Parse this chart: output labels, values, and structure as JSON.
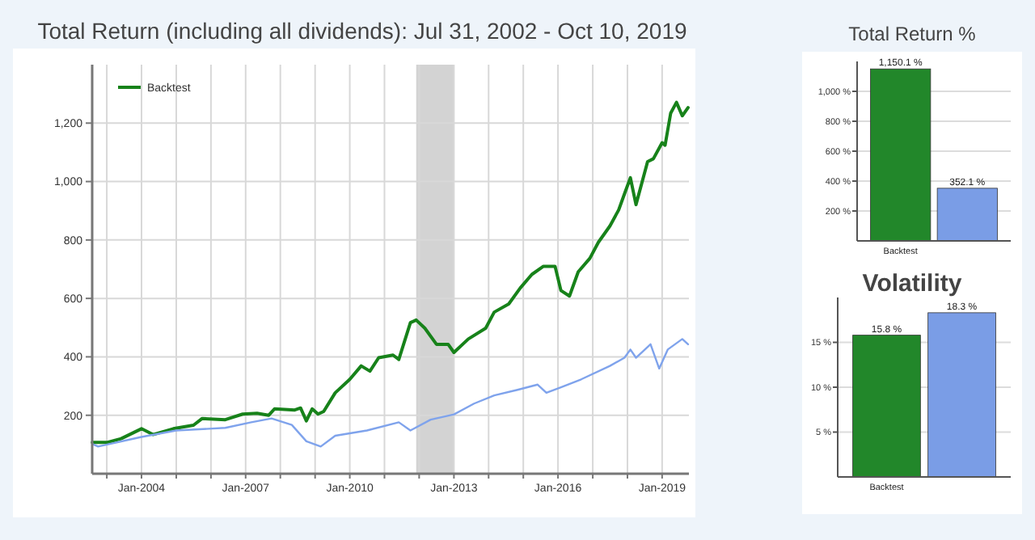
{
  "chart_data": [
    {
      "type": "line",
      "title": "Total Return (including all dividends): Jul 31, 2002 - Oct 10, 2019",
      "xlim": [
        "2002-07-31",
        "2019-10-10"
      ],
      "xticks": [
        {
          "value": "2003-01",
          "label": null
        },
        {
          "value": "2004-01",
          "label": "Jan-2004"
        },
        {
          "value": "2005-01",
          "label": null
        },
        {
          "value": "2006-01",
          "label": null
        },
        {
          "value": "2007-01",
          "label": "Jan-2007"
        },
        {
          "value": "2008-01",
          "label": null
        },
        {
          "value": "2009-01",
          "label": null
        },
        {
          "value": "2010-01",
          "label": "Jan-2010"
        },
        {
          "value": "2011-01",
          "label": null
        },
        {
          "value": "2012-01",
          "label": null
        },
        {
          "value": "2013-01",
          "label": "Jan-2013"
        },
        {
          "value": "2014-01",
          "label": null
        },
        {
          "value": "2015-01",
          "label": null
        },
        {
          "value": "2016-01",
          "label": "Jan-2016"
        },
        {
          "value": "2017-01",
          "label": null
        },
        {
          "value": "2018-01",
          "label": null
        },
        {
          "value": "2019-01",
          "label": "Jan-2019"
        }
      ],
      "ylim": [
        0,
        1400
      ],
      "yticks": [
        200,
        400,
        600,
        800,
        {
          "value": 1000,
          "label": "1,000"
        },
        {
          "value": 1200,
          "label": "1,200"
        }
      ],
      "grid": true,
      "legend": "top left",
      "bands": [
        {
          "axis": "x",
          "from": "2011-12",
          "to": "2013-01",
          "color": "#d3d3d3"
        }
      ],
      "series": [
        {
          "name": "Backtest",
          "color": "#17821a",
          "x": [
            "2002-08",
            "2003-01",
            "2003-06",
            "2004-01",
            "2004-05",
            "2004-12",
            "2005-07",
            "2005-10",
            "2006-06",
            "2006-12",
            "2007-05",
            "2007-09",
            "2007-11",
            "2008-06",
            "2008-08",
            "2008-10",
            "2008-12",
            "2009-02",
            "2009-04",
            "2009-08",
            "2010-01",
            "2010-05",
            "2010-08",
            "2010-11",
            "2011-04",
            "2011-06",
            "2011-10",
            "2011-12",
            "2012-03",
            "2012-07",
            "2012-11",
            "2013-01",
            "2013-06",
            "2013-12",
            "2014-03",
            "2014-08",
            "2014-12",
            "2015-04",
            "2015-08",
            "2015-12",
            "2016-02",
            "2016-05",
            "2016-08",
            "2016-12",
            "2017-03",
            "2017-07",
            "2017-10",
            "2017-12",
            "2018-02",
            "2018-04",
            "2018-08",
            "2018-10",
            "2019-01",
            "2019-02",
            "2019-04",
            "2019-06",
            "2019-08",
            "2019-10"
          ],
          "values": [
            107,
            107,
            120,
            154,
            134,
            154,
            166,
            189,
            185,
            204,
            207,
            200,
            222,
            218,
            225,
            181,
            222,
            204,
            213,
            277,
            323,
            369,
            351,
            397,
            406,
            391,
            517,
            526,
            498,
            443,
            443,
            415,
            461,
            498,
            553,
            581,
            636,
            682,
            710,
            710,
            627,
            608,
            691,
            737,
            792,
            848,
            903,
            958,
            1013,
            921,
            1068,
            1078,
            1133,
            1124,
            1234,
            1271,
            1225,
            1253
          ]
        },
        {
          "color": "#7fa3ec",
          "x": [
            "2002-08",
            "2002-10",
            "2004-01",
            "2005-01",
            "2006-06",
            "2007-03",
            "2007-10",
            "2008-05",
            "2008-10",
            "2009-03",
            "2009-08",
            "2010-07",
            "2011-06",
            "2011-10",
            "2012-05",
            "2013-01",
            "2013-08",
            "2014-03",
            "2014-11",
            "2015-06",
            "2015-09",
            "2016-02",
            "2016-09",
            "2017-07",
            "2017-12",
            "2018-02",
            "2018-04",
            "2018-09",
            "2018-12",
            "2019-03",
            "2019-08",
            "2019-10"
          ],
          "values": [
            102,
            93,
            126,
            148,
            157,
            176,
            189,
            167,
            111,
            93,
            130,
            148,
            176,
            148,
            185,
            203,
            240,
            268,
            287,
            305,
            277,
            296,
            323,
            369,
            397,
            425,
            397,
            443,
            360,
            425,
            461,
            443
          ]
        }
      ]
    },
    {
      "type": "bar",
      "title": "Total Return %",
      "categories": [
        "Backtest",
        null
      ],
      "values": [
        1150.1,
        352.1
      ],
      "colors": [
        "#22872a",
        "#7a9de6"
      ],
      "ylim": [
        0,
        1200
      ],
      "yticks": [
        {
          "value": 200,
          "label": "200 %"
        },
        {
          "value": 400,
          "label": "400 %"
        },
        {
          "value": 600,
          "label": "600 %"
        },
        {
          "value": 800,
          "label": "800 %"
        },
        {
          "value": 1000,
          "label": "1,000 %"
        }
      ],
      "grid": "y",
      "value_labels": [
        "1,150.1 %",
        "352.1 %"
      ]
    },
    {
      "type": "bar",
      "title": "Volatility",
      "categories": [
        "Backtest",
        null
      ],
      "values": [
        15.8,
        18.3
      ],
      "colors": [
        "#22872a",
        "#7a9de6"
      ],
      "ylim": [
        0,
        20
      ],
      "yticks": [
        {
          "value": 5,
          "label": "5 %"
        },
        {
          "value": 10,
          "label": "10 %"
        },
        {
          "value": 15,
          "label": "15 %"
        }
      ],
      "grid": "y",
      "value_labels": [
        "15.8 %",
        "18.3 %"
      ]
    }
  ]
}
